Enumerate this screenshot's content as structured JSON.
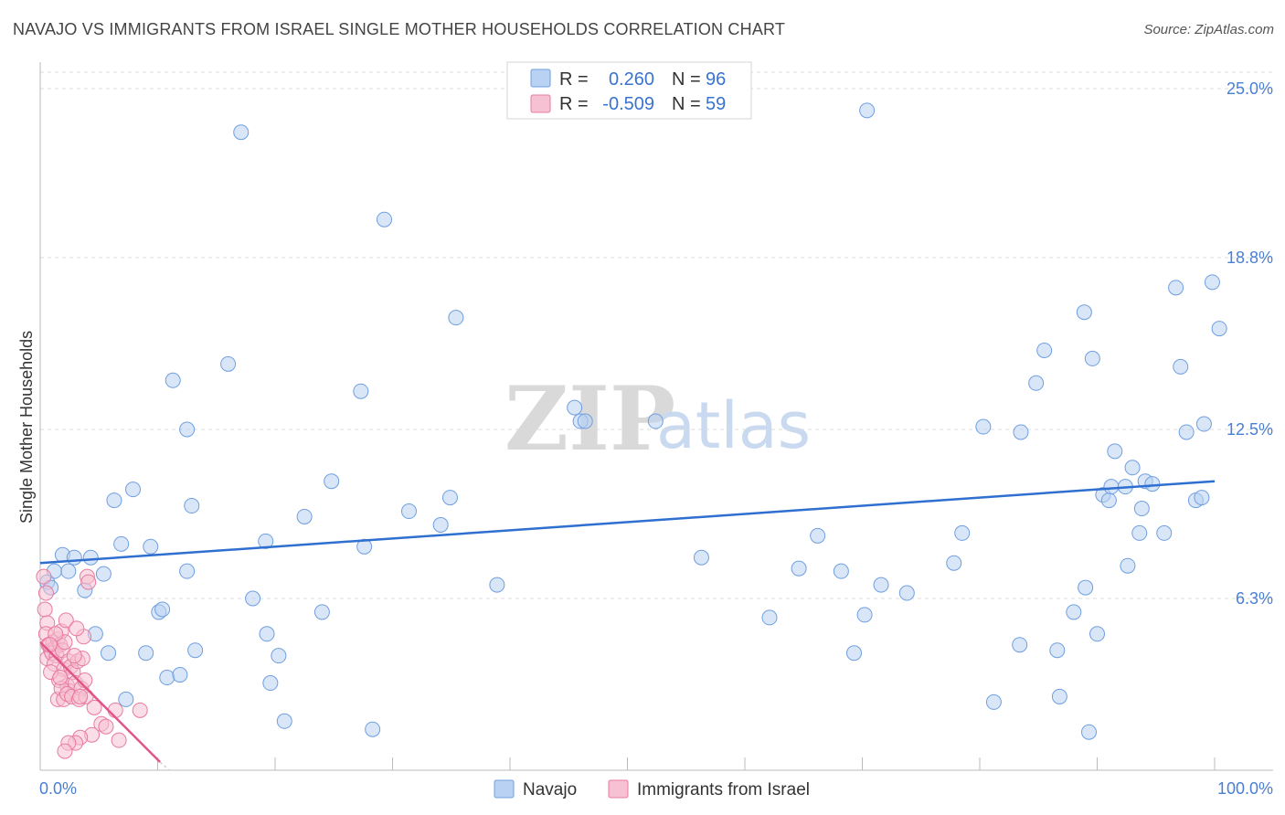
{
  "title": "NAVAJO VS IMMIGRANTS FROM ISRAEL SINGLE MOTHER HOUSEHOLDS CORRELATION CHART",
  "source": "Source: ZipAtlas.com",
  "watermark": {
    "zip": "ZIP",
    "atlas": "atlas"
  },
  "colors": {
    "navajo": "#6f9fe0",
    "navajo_fill": "#b9d2f3",
    "israel": "#e97aa0",
    "israel_fill": "#f6c1d2",
    "navajo_line": "#2e6fd0",
    "israel_line": "#e0558a"
  },
  "legend": {
    "navajo": {
      "r_label": "R =",
      "r_value": "0.260",
      "n_label": "N =",
      "n_value": "96"
    },
    "israel": {
      "r_label": "R =",
      "r_value": "-0.509",
      "n_label": "N =",
      "n_value": "59"
    }
  },
  "bottom_legend": {
    "navajo": "Navajo",
    "israel": "Immigrants from Israel"
  },
  "chart_data": {
    "type": "scatter",
    "xlabel": "",
    "ylabel": "Single Mother Households",
    "xlim": [
      0,
      100
    ],
    "ylim": [
      0,
      26
    ],
    "x_tick_labels": [
      "0.0%",
      "100.0%"
    ],
    "y_ticks": [
      6.3,
      12.5,
      18.8,
      25.0
    ],
    "y_tick_labels": [
      "6.3%",
      "12.5%",
      "18.8%",
      "25.0%"
    ],
    "series": [
      {
        "name": "Navajo",
        "trend": {
          "x0": 0,
          "y0": 7.6,
          "x1": 100,
          "y1": 10.6
        },
        "points": [
          [
            17.1,
            23.4
          ],
          [
            70.4,
            24.2
          ],
          [
            29.3,
            20.2
          ],
          [
            35.4,
            16.6
          ],
          [
            16.0,
            14.9
          ],
          [
            11.3,
            14.3
          ],
          [
            27.3,
            13.9
          ],
          [
            12.5,
            12.5
          ],
          [
            45.5,
            13.3
          ],
          [
            46.0,
            12.8
          ],
          [
            46.4,
            12.8
          ],
          [
            52.4,
            12.8
          ],
          [
            7.9,
            10.3
          ],
          [
            6.3,
            9.9
          ],
          [
            12.9,
            9.7
          ],
          [
            24.8,
            10.6
          ],
          [
            31.4,
            9.5
          ],
          [
            34.9,
            10.0
          ],
          [
            22.5,
            9.3
          ],
          [
            34.1,
            9.0
          ],
          [
            6.9,
            8.3
          ],
          [
            9.4,
            8.2
          ],
          [
            19.2,
            8.4
          ],
          [
            27.6,
            8.2
          ],
          [
            1.9,
            7.9
          ],
          [
            2.9,
            7.8
          ],
          [
            4.3,
            7.8
          ],
          [
            1.2,
            7.3
          ],
          [
            2.4,
            7.3
          ],
          [
            5.4,
            7.2
          ],
          [
            0.6,
            6.9
          ],
          [
            0.9,
            6.7
          ],
          [
            3.8,
            6.6
          ],
          [
            12.5,
            7.3
          ],
          [
            18.1,
            6.3
          ],
          [
            38.9,
            6.8
          ],
          [
            56.3,
            7.8
          ],
          [
            66.2,
            8.6
          ],
          [
            64.6,
            7.4
          ],
          [
            68.2,
            7.3
          ],
          [
            71.6,
            6.8
          ],
          [
            73.8,
            6.5
          ],
          [
            77.8,
            7.6
          ],
          [
            10.1,
            5.8
          ],
          [
            10.4,
            5.9
          ],
          [
            24.0,
            5.8
          ],
          [
            19.3,
            5.0
          ],
          [
            4.7,
            5.0
          ],
          [
            5.8,
            4.3
          ],
          [
            9.0,
            4.3
          ],
          [
            13.2,
            4.4
          ],
          [
            20.3,
            4.2
          ],
          [
            10.8,
            3.4
          ],
          [
            11.9,
            3.5
          ],
          [
            19.6,
            3.2
          ],
          [
            7.3,
            2.6
          ],
          [
            20.8,
            1.8
          ],
          [
            28.3,
            1.5
          ],
          [
            62.1,
            5.6
          ],
          [
            69.3,
            4.3
          ],
          [
            70.2,
            5.7
          ],
          [
            78.5,
            8.7
          ],
          [
            80.3,
            12.6
          ],
          [
            83.5,
            12.4
          ],
          [
            83.4,
            4.6
          ],
          [
            81.2,
            2.5
          ],
          [
            84.8,
            14.2
          ],
          [
            85.5,
            15.4
          ],
          [
            86.6,
            4.4
          ],
          [
            86.8,
            2.7
          ],
          [
            88.0,
            5.8
          ],
          [
            89.0,
            6.7
          ],
          [
            89.3,
            1.4
          ],
          [
            88.9,
            16.8
          ],
          [
            89.6,
            15.1
          ],
          [
            90.0,
            5.0
          ],
          [
            90.5,
            10.1
          ],
          [
            91.0,
            9.9
          ],
          [
            91.2,
            10.4
          ],
          [
            91.5,
            11.7
          ],
          [
            92.4,
            10.4
          ],
          [
            92.6,
            7.5
          ],
          [
            93.0,
            11.1
          ],
          [
            93.6,
            8.7
          ],
          [
            93.8,
            9.6
          ],
          [
            94.1,
            10.6
          ],
          [
            94.7,
            10.5
          ],
          [
            95.7,
            8.7
          ],
          [
            96.7,
            17.7
          ],
          [
            97.1,
            14.8
          ],
          [
            97.6,
            12.4
          ],
          [
            98.4,
            9.9
          ],
          [
            98.9,
            10.0
          ],
          [
            99.1,
            12.7
          ],
          [
            99.8,
            17.9
          ],
          [
            100.4,
            16.2
          ]
        ]
      },
      {
        "name": "Immigrants from Israel",
        "trend": {
          "x0": 0,
          "y0": 4.7,
          "x1": 10.2,
          "y1": 0.3
        },
        "trend_ext": {
          "x0": 10.2,
          "y0": 0.3,
          "x1": 11.0,
          "y1": 0.0
        },
        "points": [
          [
            0.3,
            7.1
          ],
          [
            0.5,
            6.5
          ],
          [
            0.4,
            5.9
          ],
          [
            0.6,
            5.4
          ],
          [
            0.5,
            5.0
          ],
          [
            0.7,
            4.6
          ],
          [
            0.9,
            4.4
          ],
          [
            0.6,
            4.1
          ],
          [
            1.1,
            4.7
          ],
          [
            1.3,
            4.5
          ],
          [
            1.0,
            4.3
          ],
          [
            1.5,
            4.8
          ],
          [
            1.7,
            4.6
          ],
          [
            1.4,
            4.2
          ],
          [
            1.2,
            3.9
          ],
          [
            1.8,
            5.1
          ],
          [
            1.9,
            4.4
          ],
          [
            2.1,
            4.7
          ],
          [
            2.0,
            3.7
          ],
          [
            2.2,
            5.5
          ],
          [
            1.6,
            3.3
          ],
          [
            2.4,
            4.0
          ],
          [
            2.6,
            3.8
          ],
          [
            2.3,
            3.1
          ],
          [
            2.8,
            3.6
          ],
          [
            2.5,
            2.9
          ],
          [
            3.0,
            3.2
          ],
          [
            3.2,
            4.0
          ],
          [
            1.5,
            2.6
          ],
          [
            1.8,
            3.0
          ],
          [
            2.0,
            2.6
          ],
          [
            2.3,
            2.8
          ],
          [
            2.7,
            2.7
          ],
          [
            3.5,
            3.0
          ],
          [
            3.3,
            2.6
          ],
          [
            3.6,
            4.1
          ],
          [
            3.8,
            3.3
          ],
          [
            3.7,
            4.9
          ],
          [
            4.0,
            7.1
          ],
          [
            4.1,
            6.9
          ],
          [
            3.9,
            2.7
          ],
          [
            4.6,
            2.3
          ],
          [
            5.2,
            1.7
          ],
          [
            5.6,
            1.6
          ],
          [
            4.4,
            1.3
          ],
          [
            3.4,
            1.2
          ],
          [
            3.0,
            1.0
          ],
          [
            2.4,
            1.0
          ],
          [
            2.1,
            0.7
          ],
          [
            6.4,
            2.2
          ],
          [
            6.7,
            1.1
          ],
          [
            8.5,
            2.2
          ],
          [
            3.1,
            5.2
          ],
          [
            1.3,
            5.0
          ],
          [
            0.8,
            4.6
          ],
          [
            0.9,
            3.6
          ],
          [
            2.9,
            4.2
          ],
          [
            3.4,
            2.7
          ],
          [
            1.7,
            3.4
          ]
        ]
      }
    ]
  }
}
